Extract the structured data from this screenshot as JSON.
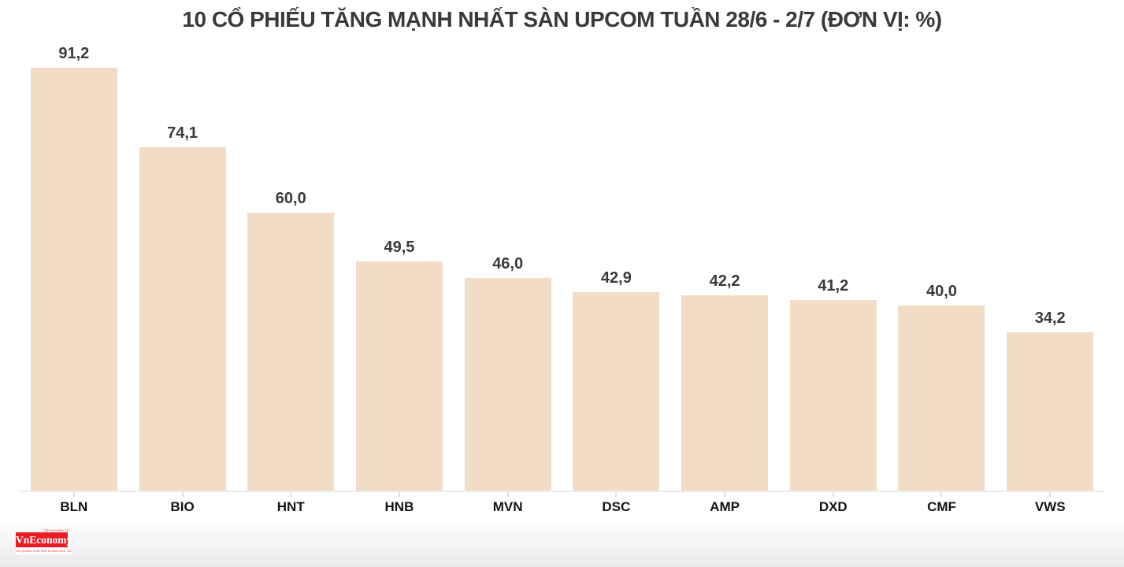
{
  "chart_data": {
    "type": "bar",
    "title": "10 CỔ PHIẾU TĂNG MẠNH NHẤT SÀN UPCOM TUẦN 28/6 - 2/7 (ĐƠN VỊ: %)",
    "categories": [
      "BLN",
      "BIO",
      "HNT",
      "HNB",
      "MVN",
      "DSC",
      "AMP",
      "DXD",
      "CMF",
      "VWS"
    ],
    "values": [
      91.2,
      74.1,
      60.0,
      49.5,
      46.0,
      42.9,
      42.2,
      41.2,
      40.0,
      34.2
    ],
    "value_labels": [
      "91,2",
      "74,1",
      "60,0",
      "49,5",
      "46,0",
      "42,9",
      "42,2",
      "41,2",
      "40,0",
      "34,2"
    ],
    "unit": "%",
    "xlabel": "",
    "ylabel": "",
    "ylim": [
      0,
      105
    ],
    "grid": false,
    "legend": false,
    "bar_color": "#F2DCC6",
    "value_label_color": "#3A3A3A",
    "category_label_color": "#141414",
    "axis_line_color": "#ECECEC"
  },
  "branding": {
    "logo_name": "VnEconomy",
    "logo_top_text": "TẠP CHÍ ĐIỆN TỬ",
    "logo_tagline": "CƠ QUAN CỦA HỘI KHOA HỌC KINH TẾ VIỆT NAM",
    "logo_bg_color": "#EB1C24",
    "logo_text_color": "#FFFFFF"
  }
}
